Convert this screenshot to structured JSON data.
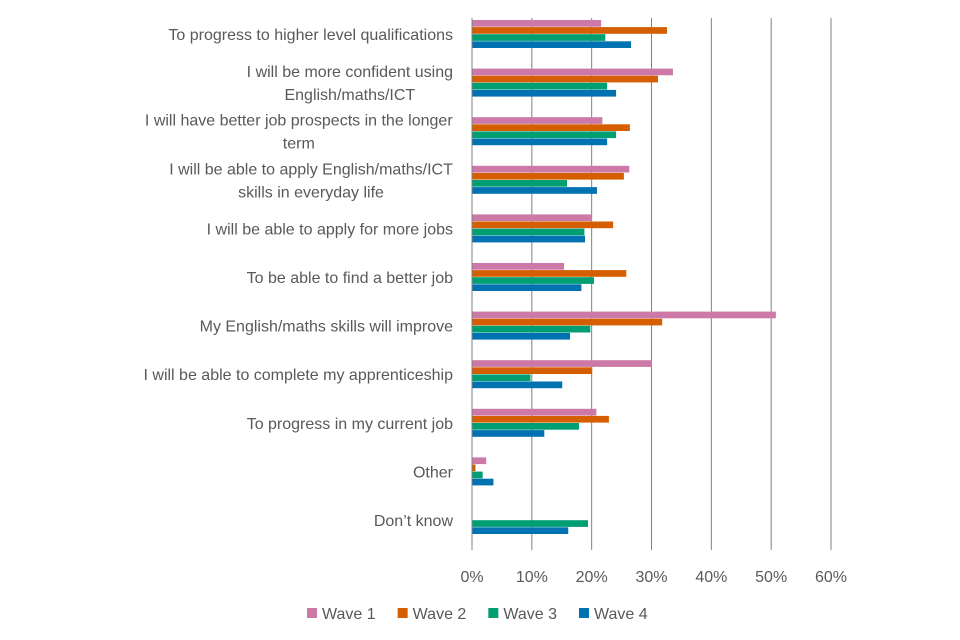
{
  "chart_data": {
    "type": "bar",
    "orientation": "horizontal",
    "title": "",
    "xlabel": "",
    "ylabel": "",
    "xlim": [
      0,
      60
    ],
    "x_ticks": [
      "0%",
      "10%",
      "20%",
      "30%",
      "40%",
      "50%",
      "60%"
    ],
    "gridlines": "vertical",
    "legend_position": "bottom",
    "categories": [
      {
        "lines": [
          "To progress to higher level qualifications"
        ]
      },
      {
        "lines": [
          "I will be more confident using",
          "English/maths/ICT"
        ]
      },
      {
        "lines": [
          "I will have better job prospects in the longer",
          "term"
        ]
      },
      {
        "lines": [
          "I will be able to apply English/maths/ICT",
          "skills in everyday life"
        ]
      },
      {
        "lines": [
          "I will be able to apply for more jobs"
        ]
      },
      {
        "lines": [
          "To be able to find a better job"
        ]
      },
      {
        "lines": [
          "My English/maths skills will improve"
        ]
      },
      {
        "lines": [
          "I will be able to complete my apprenticeship"
        ]
      },
      {
        "lines": [
          "To progress in my current job"
        ]
      },
      {
        "lines": [
          "Other"
        ]
      },
      {
        "lines": [
          "Don’t know"
        ]
      }
    ],
    "series": [
      {
        "name": "Wave 1",
        "color": "#cc79a7",
        "values": [
          21.5,
          33.5,
          21.7,
          26.2,
          19.8,
          15.3,
          50.7,
          30.0,
          20.7,
          2.3,
          null
        ]
      },
      {
        "name": "Wave 2",
        "color": "#d55e00",
        "values": [
          32.5,
          31.0,
          26.3,
          25.3,
          23.5,
          25.7,
          31.7,
          20.0,
          22.8,
          0.5,
          null
        ]
      },
      {
        "name": "Wave 3",
        "color": "#009e73",
        "values": [
          22.2,
          22.5,
          24.0,
          15.8,
          18.7,
          20.3,
          19.7,
          9.7,
          17.8,
          1.7,
          19.3
        ]
      },
      {
        "name": "Wave 4",
        "color": "#0072b2",
        "values": [
          26.5,
          24.0,
          22.5,
          20.8,
          18.8,
          18.2,
          16.3,
          15.0,
          12.0,
          3.5,
          16.0
        ]
      }
    ]
  }
}
